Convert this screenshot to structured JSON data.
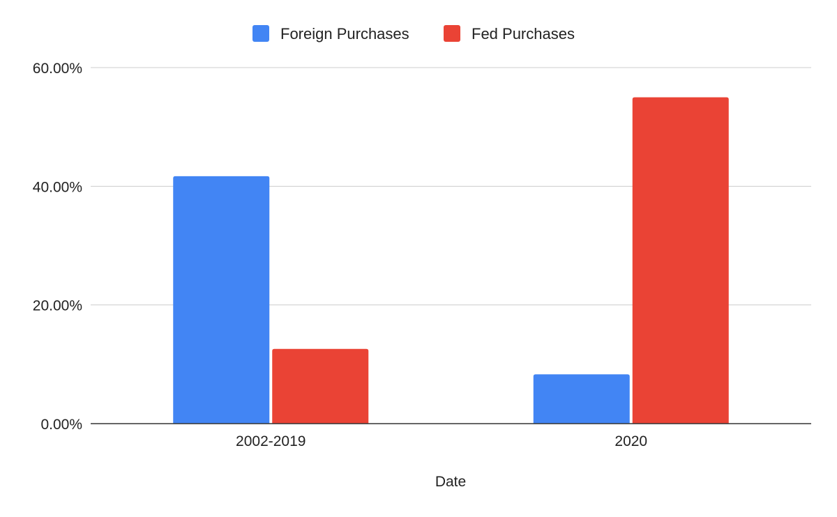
{
  "chart_data": {
    "type": "bar",
    "categories": [
      "2002-2019",
      "2020"
    ],
    "series": [
      {
        "name": "Foreign Purchases",
        "values": [
          41.7,
          8.3
        ],
        "color": "#4285f4"
      },
      {
        "name": "Fed Purchases",
        "values": [
          12.6,
          55.0
        ],
        "color": "#ea4335"
      }
    ],
    "xlabel": "Date",
    "ylabel": "",
    "ylim": [
      0,
      60
    ],
    "yticks": [
      0,
      20,
      40,
      60
    ],
    "ytick_labels": [
      "0.00%",
      "20.00%",
      "40.00%",
      "60.00%"
    ],
    "grid": true,
    "legend_position": "top-center"
  }
}
